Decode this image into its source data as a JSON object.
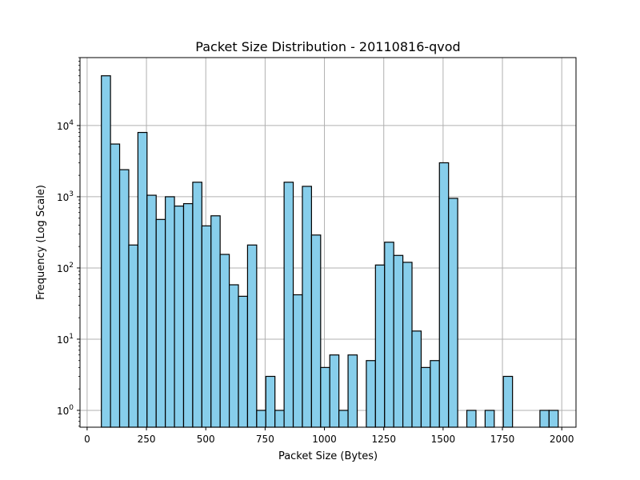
{
  "chart_data": {
    "type": "bar",
    "title": "Packet Size Distribution - 20110816-qvod",
    "xlabel": "Packet Size (Bytes)",
    "ylabel": "Frequency (Log Scale)",
    "y_scale": "log",
    "grid": true,
    "bar_color": "#87ceeb",
    "edge_color": "#000000",
    "xlim": [
      -30,
      2060
    ],
    "ylim": [
      0.58,
      90000
    ],
    "x_ticks": [
      0,
      250,
      500,
      750,
      1000,
      1250,
      1500,
      1750,
      2000
    ],
    "y_ticks": [
      {
        "value": 1,
        "base": "10",
        "exp": "0"
      },
      {
        "value": 10,
        "base": "10",
        "exp": "1"
      },
      {
        "value": 100,
        "base": "10",
        "exp": "2"
      },
      {
        "value": 1000,
        "base": "10",
        "exp": "3"
      },
      {
        "value": 10000,
        "base": "10",
        "exp": "4"
      }
    ],
    "bin_edges": [
      60,
      98.5,
      137,
      175.5,
      214,
      252.5,
      291,
      329.5,
      368,
      406.5,
      445,
      483.5,
      522,
      560.5,
      599,
      637.5,
      676,
      714.5,
      753,
      791.5,
      830,
      868.5,
      907,
      945.5,
      984,
      1022.5,
      1061,
      1099.5,
      1138,
      1176.5,
      1215,
      1253.5,
      1292,
      1330.5,
      1369,
      1407.5,
      1446,
      1484.5,
      1523,
      1561.5,
      1600,
      1638.5,
      1677,
      1715.5,
      1754,
      1792.5,
      1831,
      1869.5,
      1908,
      1946.5,
      1985
    ],
    "values": [
      50000,
      5500,
      2400,
      210,
      8000,
      1050,
      480,
      1000,
      740,
      800,
      1600,
      390,
      540,
      155,
      58,
      40,
      210,
      1,
      3,
      1,
      1600,
      42,
      1400,
      290,
      4,
      6,
      1,
      6,
      0,
      5,
      110,
      230,
      150,
      120,
      13,
      4,
      5,
      3000,
      950,
      0,
      1,
      0,
      1,
      0,
      3,
      0,
      0,
      0,
      1,
      1
    ]
  }
}
